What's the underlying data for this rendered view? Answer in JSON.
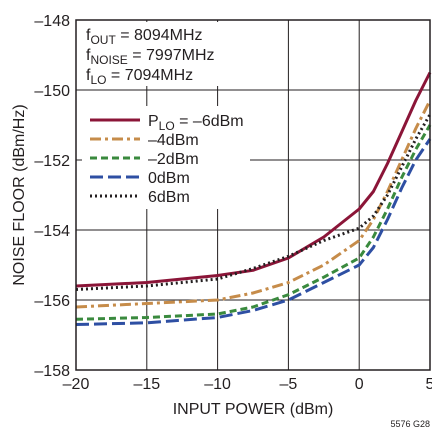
{
  "chart_data": {
    "type": "line",
    "title": "",
    "xlabel": "INPUT POWER (dBm)",
    "ylabel": "NOISE FLOOR (dBm/Hz)",
    "xlim": [
      -20,
      5
    ],
    "ylim": [
      -158,
      -148
    ],
    "x_ticks": [
      -20,
      -15,
      -10,
      -5,
      0,
      5
    ],
    "y_ticks": [
      -158,
      -156,
      -154,
      -152,
      -150,
      -148
    ],
    "x_tick_labels": [
      "–20",
      "–15",
      "–10",
      "–5",
      "0",
      "5"
    ],
    "y_tick_labels": [
      "–158",
      "–156",
      "–154",
      "–152",
      "–150",
      "–148"
    ],
    "grid": true,
    "conditions": [
      {
        "main": "f",
        "sub": "OUT",
        "rest": " = 8094MHz"
      },
      {
        "main": "f",
        "sub": "NOISE",
        "rest": " = 7997MHz"
      },
      {
        "main": "f",
        "sub": "LO",
        "rest": " = 7094MHz"
      }
    ],
    "legend_position": "upper-left",
    "legend_title_parts": {
      "main": "P",
      "sub": "LO",
      "rest": " = –6dBm"
    },
    "series": [
      {
        "name": "–6dBm",
        "color": "#8b1538",
        "dash": "solid",
        "x": [
          -20,
          -15,
          -10,
          -7.5,
          -5,
          -2.5,
          0,
          1,
          2,
          3,
          4,
          5
        ],
        "y": [
          -155.6,
          -155.5,
          -155.3,
          -155.15,
          -154.8,
          -154.2,
          -153.4,
          -152.9,
          -152.1,
          -151.2,
          -150.3,
          -149.5
        ]
      },
      {
        "name": "–4dBm",
        "color": "#c68c4a",
        "dash": "dashdot",
        "x": [
          -20,
          -15,
          -10,
          -7.5,
          -5,
          -2.5,
          0,
          1,
          2,
          3,
          4,
          5
        ],
        "y": [
          -156.2,
          -156.1,
          -156.0,
          -155.8,
          -155.5,
          -155.0,
          -154.3,
          -153.7,
          -152.9,
          -152.0,
          -151.1,
          -150.3
        ]
      },
      {
        "name": "–2dBm",
        "color": "#3a8a3e",
        "dash": "dash",
        "x": [
          -20,
          -15,
          -10,
          -7.5,
          -5,
          -2.5,
          0,
          1,
          2,
          3,
          4,
          5
        ],
        "y": [
          -156.55,
          -156.5,
          -156.4,
          -156.2,
          -155.85,
          -155.35,
          -154.8,
          -154.2,
          -153.4,
          -152.5,
          -151.7,
          -151.0
        ]
      },
      {
        "name": "0dBm",
        "color": "#2e4fa3",
        "dash": "longdash",
        "x": [
          -20,
          -15,
          -10,
          -7.5,
          -5,
          -2.5,
          0,
          1,
          2,
          3,
          4,
          5
        ],
        "y": [
          -156.7,
          -156.65,
          -156.5,
          -156.3,
          -156.0,
          -155.5,
          -155.0,
          -154.5,
          -153.7,
          -152.8,
          -152.0,
          -151.4
        ]
      },
      {
        "name": "6dBm",
        "color": "#231f20",
        "dash": "dot",
        "x": [
          -20,
          -15,
          -10,
          -7.5,
          -5,
          -2.5,
          0,
          1,
          2,
          3,
          4,
          5
        ],
        "y": [
          -155.7,
          -155.6,
          -155.4,
          -155.1,
          -154.75,
          -154.3,
          -153.95,
          -153.6,
          -153.0,
          -152.2,
          -151.4,
          -150.7
        ]
      }
    ],
    "figure_code": "5576 G28"
  }
}
